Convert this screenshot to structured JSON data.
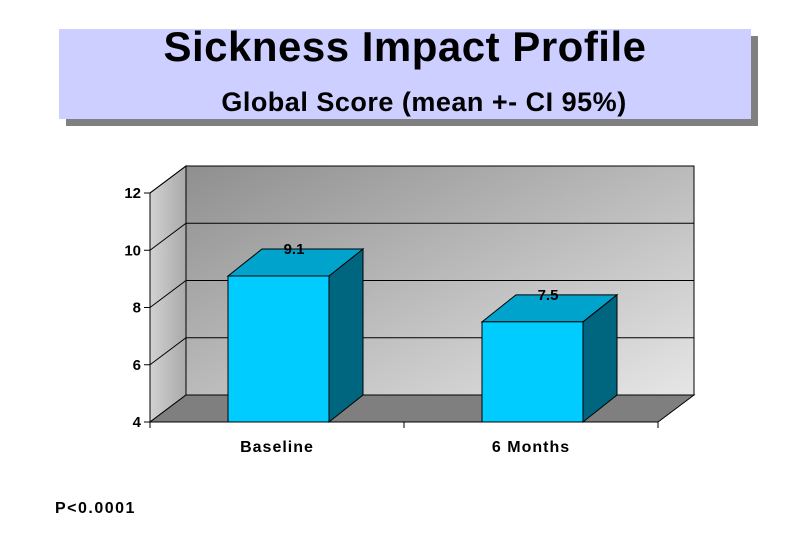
{
  "title": "Sickness Impact Profile",
  "subtitle": "Global Score (mean +- CI 95%)",
  "footnote": "P<0.0001",
  "colors": {
    "bar_front": "#00ccff",
    "bar_side": "#006680",
    "bar_top": "#00a3cc",
    "title_bg": "#cccfff"
  },
  "chart_data": {
    "type": "bar",
    "categories": [
      "Baseline",
      "6 Months"
    ],
    "values": [
      9.1,
      7.5
    ],
    "data_labels": [
      "9.1",
      "7.5"
    ],
    "ylim": [
      4,
      12
    ],
    "yticks": [
      "4",
      "6",
      "8",
      "10",
      "12"
    ],
    "grid": true,
    "three_d": true
  }
}
